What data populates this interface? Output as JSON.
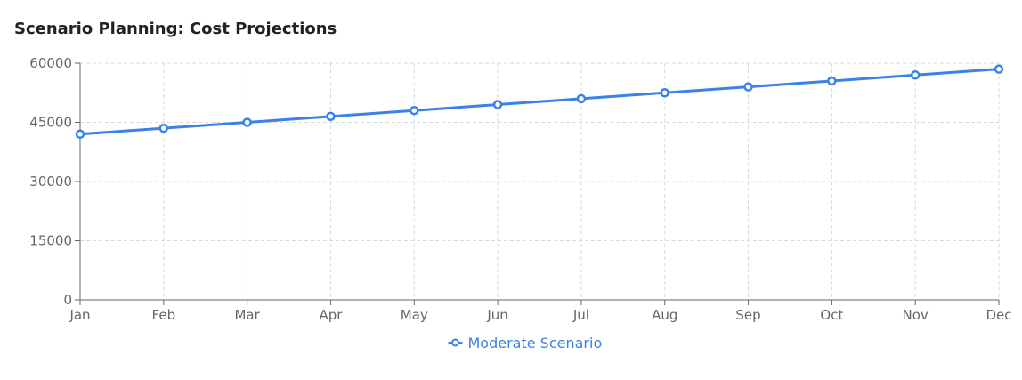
{
  "colors": {
    "series": "#3b82e8",
    "grid": "#d9d9d9",
    "axis": "#666666",
    "tick_text": "#666666"
  },
  "chart_data": {
    "type": "line",
    "title": "Scenario Planning: Cost Projections",
    "xlabel": "",
    "ylabel": "",
    "categories": [
      "Jan",
      "Feb",
      "Mar",
      "Apr",
      "May",
      "Jun",
      "Jul",
      "Aug",
      "Sep",
      "Oct",
      "Nov",
      "Dec"
    ],
    "ylim": [
      0,
      60000
    ],
    "yticks": [
      0,
      15000,
      30000,
      45000,
      60000
    ],
    "grid": true,
    "legend_position": "bottom",
    "series": [
      {
        "name": "Moderate Scenario",
        "values": [
          42000,
          43500,
          45000,
          46500,
          48000,
          49500,
          51000,
          52500,
          54000,
          55500,
          57000,
          58500
        ]
      }
    ]
  }
}
